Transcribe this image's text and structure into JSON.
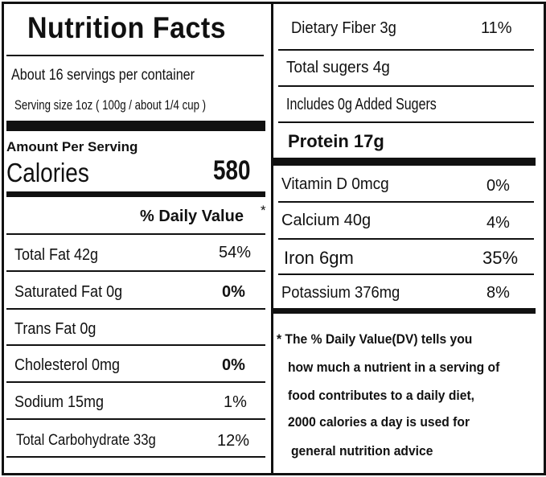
{
  "label": {
    "title": "Nutrition Facts",
    "servings_per_container": "About 16 servings per container",
    "serving_size": "Serving size 1oz ( 100g / about 1/4 cup )",
    "amount_per_serving": "Amount Per Serving",
    "calories_label": "Calories",
    "calories_value": "580",
    "daily_value_header": "% Daily Value",
    "daily_value_star": "*"
  },
  "left_nutrients": [
    {
      "name": "Total Fat  42g",
      "dv": "54%"
    },
    {
      "name": "Saturated Fat 0g",
      "dv": "0%"
    },
    {
      "name": "Trans Fat 0g",
      "dv": ""
    },
    {
      "name": "Cholesterol  0mg",
      "dv": "0%"
    },
    {
      "name": "Sodium  15mg",
      "dv": "1%"
    },
    {
      "name": "Total Carbohydrate 33g",
      "dv": "12%"
    }
  ],
  "right_nutrients": {
    "dietary_fiber": {
      "name": "Dietary Fiber  3g",
      "dv": "11%"
    },
    "total_sugars": "Total sugers 4g",
    "added_sugars": "Includes 0g Added Sugers",
    "protein": "Protein 17g",
    "vitamin_d": {
      "name": "Vitamin D 0mcg",
      "dv": "0%"
    },
    "calcium": {
      "name": "Calcium  40g",
      "dv": "4%"
    },
    "iron": {
      "name": "Iron  6gm",
      "dv": "35%"
    },
    "potassium": {
      "name": "Potassium  376mg",
      "dv": "8%"
    }
  },
  "footnote": {
    "line1": "* The % Daily Value(DV)  tells you",
    "line2": "how much a nutrient in a serving of",
    "line3": "food contributes to a daily diet,",
    "line4": "2000 calories a day is used for",
    "line5": "general nutrition advice"
  }
}
